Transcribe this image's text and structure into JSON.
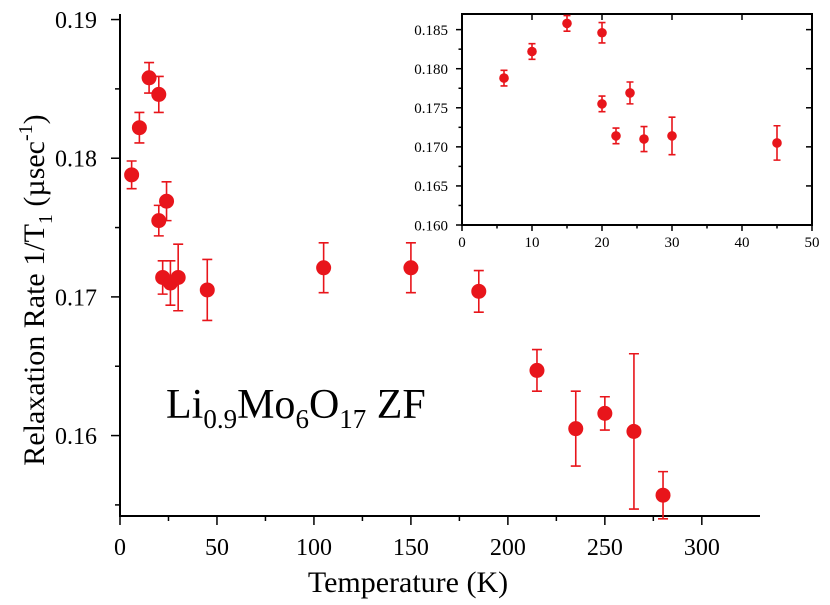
{
  "chart_data": [
    {
      "type": "scatter",
      "id": "main",
      "xlabel": "Temperature (K)",
      "ylabel": "Relaxation Rate 1/T",
      "ylabel_sub": "1",
      "ylabel_unit": " (µsec",
      "ylabel_sup": "-1",
      "ylabel_close": ")",
      "xlim": [
        0,
        330
      ],
      "ylim": [
        0.1542,
        0.1904
      ],
      "xticks": [
        0,
        50,
        100,
        150,
        200,
        250,
        300
      ],
      "xtick_labels": [
        "0",
        "50",
        "100",
        "150",
        "200",
        "250",
        "300"
      ],
      "yticks": [
        0.16,
        0.17,
        0.18,
        0.19
      ],
      "ytick_labels": [
        "0.16",
        "0.17",
        "0.18",
        "0.19"
      ],
      "annotation": {
        "parts": [
          {
            "text": "Li",
            "style": "normal"
          },
          {
            "text": "0.9",
            "style": "sub"
          },
          {
            "text": "Mo",
            "style": "normal"
          },
          {
            "text": "6",
            "style": "sub"
          },
          {
            "text": "O",
            "style": "normal"
          },
          {
            "text": "17",
            "style": "sub"
          },
          {
            "text": " ZF",
            "style": "normal"
          }
        ]
      },
      "series": [
        {
          "name": "Li0.9Mo6O17 ZF",
          "color": "#e8151b",
          "points": [
            {
              "x": 6,
              "y": 0.1788,
              "err": 0.001
            },
            {
              "x": 10,
              "y": 0.1822,
              "err": 0.0011
            },
            {
              "x": 15,
              "y": 0.1858,
              "err": 0.0011
            },
            {
              "x": 20,
              "y": 0.1846,
              "err": 0.0013
            },
            {
              "x": 20,
              "y": 0.1755,
              "err": 0.0011
            },
            {
              "x": 22,
              "y": 0.1714,
              "err": 0.0012
            },
            {
              "x": 24,
              "y": 0.1769,
              "err": 0.0014
            },
            {
              "x": 26,
              "y": 0.171,
              "err": 0.0016
            },
            {
              "x": 30,
              "y": 0.1714,
              "err": 0.0024
            },
            {
              "x": 45,
              "y": 0.1705,
              "err": 0.0022
            },
            {
              "x": 105,
              "y": 0.1721,
              "err": 0.0018
            },
            {
              "x": 150,
              "y": 0.1721,
              "err": 0.0018
            },
            {
              "x": 185,
              "y": 0.1704,
              "err": 0.0015
            },
            {
              "x": 215,
              "y": 0.1647,
              "err": 0.0015
            },
            {
              "x": 235,
              "y": 0.1605,
              "err": 0.0027
            },
            {
              "x": 250,
              "y": 0.1616,
              "err": 0.0012
            },
            {
              "x": 265,
              "y": 0.1603,
              "err": 0.0056
            },
            {
              "x": 280,
              "y": 0.1557,
              "err": 0.0017
            }
          ]
        }
      ]
    },
    {
      "type": "scatter",
      "id": "inset",
      "xlabel": "",
      "ylabel": "",
      "xlim": [
        0,
        50
      ],
      "ylim": [
        0.16,
        0.187
      ],
      "xticks": [
        0,
        10,
        20,
        30,
        40,
        50
      ],
      "xtick_labels": [
        "0",
        "10",
        "20",
        "30",
        "40",
        "50"
      ],
      "yticks": [
        0.16,
        0.165,
        0.17,
        0.175,
        0.18,
        0.185
      ],
      "ytick_labels": [
        "0.160",
        "0.165",
        "0.170",
        "0.175",
        "0.180",
        "0.185"
      ],
      "series": [
        {
          "name": "Li0.9Mo6O17 ZF (low T)",
          "color": "#e8151b",
          "points": [
            {
              "x": 6,
              "y": 0.1788,
              "err": 0.001
            },
            {
              "x": 10,
              "y": 0.1822,
              "err": 0.001
            },
            {
              "x": 15,
              "y": 0.1858,
              "err": 0.001
            },
            {
              "x": 20,
              "y": 0.1846,
              "err": 0.0013
            },
            {
              "x": 20,
              "y": 0.1755,
              "err": 0.001
            },
            {
              "x": 22,
              "y": 0.1714,
              "err": 0.001
            },
            {
              "x": 24,
              "y": 0.1769,
              "err": 0.0014
            },
            {
              "x": 26,
              "y": 0.171,
              "err": 0.0016
            },
            {
              "x": 30,
              "y": 0.1714,
              "err": 0.0024
            },
            {
              "x": 45,
              "y": 0.1705,
              "err": 0.0022
            }
          ]
        }
      ]
    }
  ]
}
